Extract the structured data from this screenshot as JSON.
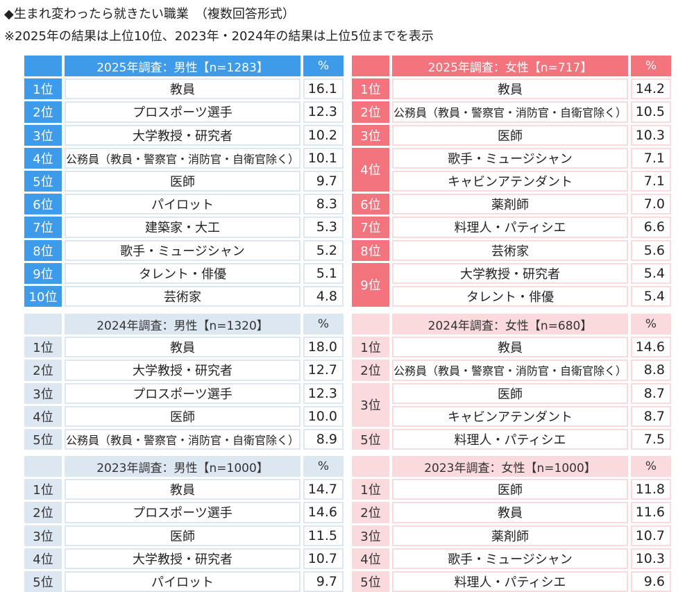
{
  "header": {
    "title": "◆生まれ変わったら就きたい職業　（複数回答形式）",
    "note": "※2025年の結果は上位10位、2023年・2024年の結果は上位5位までを表示"
  },
  "colors": {
    "male_accent": "#3d9be9",
    "male_light": "#dce7f1",
    "female_accent": "#f4747d",
    "female_light": "#fbdadd"
  },
  "chart_data": [
    {
      "type": "table",
      "title": "2025年調査：男性【n=1283】",
      "value_header": "%",
      "rows": [
        {
          "rank": "1位",
          "name": "教員",
          "pct": "16.1"
        },
        {
          "rank": "2位",
          "name": "プロスポーツ選手",
          "pct": "12.3"
        },
        {
          "rank": "3位",
          "name": "大学教授・研究者",
          "pct": "10.2"
        },
        {
          "rank": "4位",
          "name": "公務員（教員・警察官・消防官・自衛官除く）",
          "pct": "10.1"
        },
        {
          "rank": "5位",
          "name": "医師",
          "pct": "9.7"
        },
        {
          "rank": "6位",
          "name": "パイロット",
          "pct": "8.3"
        },
        {
          "rank": "7位",
          "name": "建築家・大工",
          "pct": "5.3"
        },
        {
          "rank": "8位",
          "name": "歌手・ミュージシャン",
          "pct": "5.2"
        },
        {
          "rank": "9位",
          "name": "タレント・俳優",
          "pct": "5.1"
        },
        {
          "rank": "10位",
          "name": "芸術家",
          "pct": "4.8"
        }
      ]
    },
    {
      "type": "table",
      "title": "2025年調査：女性【n=717】",
      "value_header": "%",
      "rows": [
        {
          "rank": "1位",
          "name": "教員",
          "pct": "14.2"
        },
        {
          "rank": "2位",
          "name": "公務員（教員・警察官・消防官・自衛官除く）",
          "pct": "10.5"
        },
        {
          "rank": "3位",
          "name": "医師",
          "pct": "10.3"
        },
        {
          "rank": "4位",
          "name": "歌手・ミュージシャン",
          "pct": "7.1"
        },
        {
          "rank": "4位",
          "name": "キャビンアテンダント",
          "pct": "7.1"
        },
        {
          "rank": "6位",
          "name": "薬剤師",
          "pct": "7.0"
        },
        {
          "rank": "7位",
          "name": "料理人・パティシエ",
          "pct": "6.6"
        },
        {
          "rank": "8位",
          "name": "芸術家",
          "pct": "5.6"
        },
        {
          "rank": "9位",
          "name": "大学教授・研究者",
          "pct": "5.4"
        },
        {
          "rank": "9位",
          "name": "タレント・俳優",
          "pct": "5.4"
        }
      ]
    },
    {
      "type": "table",
      "title": "2024年調査：男性【n=1320】",
      "value_header": "%",
      "rows": [
        {
          "rank": "1位",
          "name": "教員",
          "pct": "18.0"
        },
        {
          "rank": "2位",
          "name": "大学教授・研究者",
          "pct": "12.7"
        },
        {
          "rank": "3位",
          "name": "プロスポーツ選手",
          "pct": "12.3"
        },
        {
          "rank": "4位",
          "name": "医師",
          "pct": "10.0"
        },
        {
          "rank": "5位",
          "name": "公務員（教員・警察官・消防官・自衛官除く）",
          "pct": "8.9"
        }
      ]
    },
    {
      "type": "table",
      "title": "2024年調査：女性【n=680】",
      "value_header": "%",
      "rows": [
        {
          "rank": "1位",
          "name": "教員",
          "pct": "14.6"
        },
        {
          "rank": "2位",
          "name": "公務員（教員・警察官・消防官・自衛官除く）",
          "pct": "8.8"
        },
        {
          "rank": "3位",
          "name": "医師",
          "pct": "8.7"
        },
        {
          "rank": "3位",
          "name": "キャビンアテンダント",
          "pct": "8.7"
        },
        {
          "rank": "5位",
          "name": "料理人・パティシエ",
          "pct": "7.5"
        }
      ]
    },
    {
      "type": "table",
      "title": "2023年調査：男性【n=1000】",
      "value_header": "%",
      "rows": [
        {
          "rank": "1位",
          "name": "教員",
          "pct": "14.7"
        },
        {
          "rank": "2位",
          "name": "プロスポーツ選手",
          "pct": "14.6"
        },
        {
          "rank": "3位",
          "name": "医師",
          "pct": "11.5"
        },
        {
          "rank": "4位",
          "name": "大学教授・研究者",
          "pct": "10.7"
        },
        {
          "rank": "5位",
          "name": "パイロット",
          "pct": "9.7"
        }
      ]
    },
    {
      "type": "table",
      "title": "2023年調査：女性【n=1000】",
      "value_header": "%",
      "rows": [
        {
          "rank": "1位",
          "name": "医師",
          "pct": "11.8"
        },
        {
          "rank": "2位",
          "name": "教員",
          "pct": "11.6"
        },
        {
          "rank": "3位",
          "name": "薬剤師",
          "pct": "10.7"
        },
        {
          "rank": "4位",
          "name": "歌手・ミュージシャン",
          "pct": "10.3"
        },
        {
          "rank": "5位",
          "name": "料理人・パティシエ",
          "pct": "9.6"
        }
      ]
    }
  ]
}
